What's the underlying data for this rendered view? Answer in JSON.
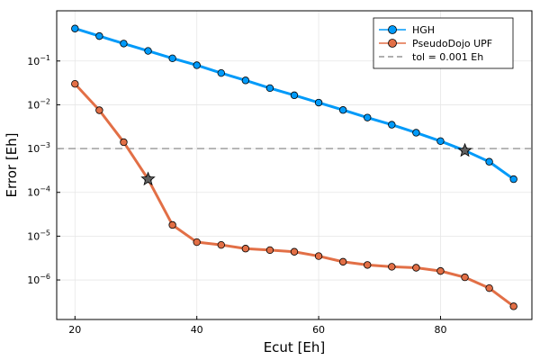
{
  "chart_data": {
    "type": "line",
    "xlabel": "Ecut [Eh]",
    "ylabel": "Error [Eh]",
    "xlim": [
      17,
      95
    ],
    "ylim": [
      1.25e-07,
      1.4
    ],
    "y_scale": "log",
    "x_ticks": [
      20,
      40,
      60,
      80
    ],
    "x_tick_labels": [
      "20",
      "40",
      "60",
      "80"
    ],
    "y_ticks": [
      1e-06,
      1e-05,
      0.0001,
      0.001,
      0.01,
      0.1
    ],
    "y_tick_base": "10",
    "y_tick_exponents": [
      "−6",
      "−5",
      "−4",
      "−3",
      "−2",
      "−1"
    ],
    "grid": true,
    "legend_position": "top-right",
    "series": [
      {
        "name": "HGH",
        "color": "#009af9",
        "marker": "circle",
        "x": [
          20,
          24,
          28,
          32,
          36,
          40,
          44,
          48,
          52,
          56,
          60,
          64,
          68,
          72,
          76,
          80,
          84,
          88,
          92
        ],
        "y": [
          0.55,
          0.37,
          0.25,
          0.17,
          0.115,
          0.08,
          0.053,
          0.036,
          0.024,
          0.0165,
          0.0112,
          0.0076,
          0.0051,
          0.0035,
          0.0023,
          0.00148,
          0.0009,
          0.0005,
          0.0002
        ]
      },
      {
        "name": "PseudoDojo UPF",
        "color": "#e26f46",
        "marker": "circle",
        "x": [
          20,
          24,
          28,
          32,
          36,
          40,
          44,
          48,
          52,
          56,
          60,
          64,
          68,
          72,
          76,
          80,
          84,
          88,
          92
        ],
        "y": [
          0.03,
          0.0075,
          0.0014,
          0.0002,
          1.8e-05,
          7.3e-06,
          6.3e-06,
          5.2e-06,
          4.8e-06,
          4.4e-06,
          3.5e-06,
          2.6e-06,
          2.2e-06,
          2e-06,
          1.9e-06,
          1.6e-06,
          1.15e-06,
          6.5e-07,
          2.5e-07
        ]
      }
    ],
    "reference_line": {
      "name": "tol = 0.001 Eh",
      "y": 0.001,
      "color": "#7f7f7f",
      "style": "dashed"
    },
    "highlight_points": [
      {
        "x": 84,
        "y": 0.0009,
        "marker": "star",
        "color": "#5f5f5f"
      },
      {
        "x": 32,
        "y": 0.0002,
        "marker": "star",
        "color": "#5f5f5f"
      }
    ]
  }
}
